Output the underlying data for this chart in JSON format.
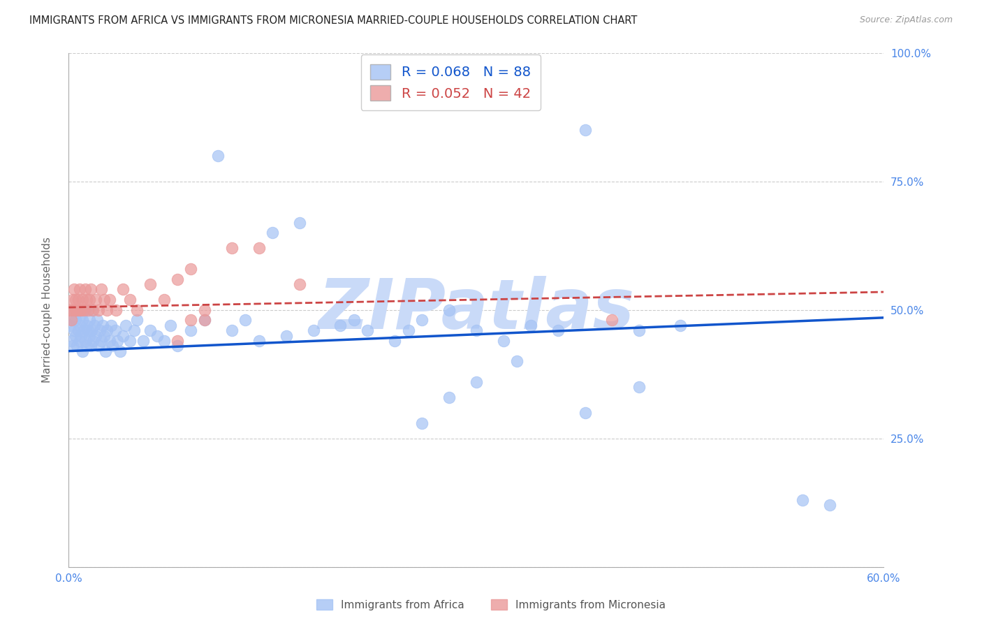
{
  "title": "IMMIGRANTS FROM AFRICA VS IMMIGRANTS FROM MICRONESIA MARRIED-COUPLE HOUSEHOLDS CORRELATION CHART",
  "source": "Source: ZipAtlas.com",
  "ylabel": "Married-couple Households",
  "xlim": [
    0.0,
    0.6
  ],
  "ylim": [
    0.0,
    1.0
  ],
  "xticks": [
    0.0,
    0.1,
    0.2,
    0.3,
    0.4,
    0.5,
    0.6
  ],
  "xticklabels": [
    "0.0%",
    "",
    "",
    "",
    "",
    "",
    "60.0%"
  ],
  "yticks": [
    0.0,
    0.25,
    0.5,
    0.75,
    1.0
  ],
  "yticklabels": [
    "",
    "25.0%",
    "50.0%",
    "75.0%",
    "100.0%"
  ],
  "blue_color": "#a4c2f4",
  "pink_color": "#ea9999",
  "blue_R": 0.068,
  "blue_N": 88,
  "pink_R": 0.052,
  "pink_N": 42,
  "blue_line_color": "#1155cc",
  "pink_line_color": "#cc4444",
  "watermark_color": "#c9daf8",
  "axis_color": "#4a86e8",
  "grid_color": "#cccccc",
  "background_color": "#ffffff",
  "blue_trend_x0": 0.0,
  "blue_trend_y0": 0.42,
  "blue_trend_x1": 0.6,
  "blue_trend_y1": 0.485,
  "pink_trend_x0": 0.0,
  "pink_trend_y0": 0.505,
  "pink_trend_x1": 0.6,
  "pink_trend_y1": 0.535,
  "africa_x": [
    0.001,
    0.002,
    0.003,
    0.003,
    0.004,
    0.004,
    0.005,
    0.005,
    0.006,
    0.007,
    0.007,
    0.008,
    0.008,
    0.009,
    0.009,
    0.01,
    0.01,
    0.011,
    0.012,
    0.012,
    0.013,
    0.013,
    0.014,
    0.015,
    0.015,
    0.016,
    0.017,
    0.017,
    0.018,
    0.019,
    0.02,
    0.021,
    0.022,
    0.023,
    0.024,
    0.025,
    0.026,
    0.027,
    0.028,
    0.03,
    0.031,
    0.032,
    0.034,
    0.036,
    0.038,
    0.04,
    0.042,
    0.045,
    0.048,
    0.05,
    0.055,
    0.06,
    0.065,
    0.07,
    0.075,
    0.08,
    0.09,
    0.1,
    0.11,
    0.12,
    0.13,
    0.14,
    0.15,
    0.16,
    0.17,
    0.18,
    0.2,
    0.21,
    0.22,
    0.24,
    0.25,
    0.26,
    0.28,
    0.3,
    0.32,
    0.34,
    0.36,
    0.38,
    0.42,
    0.45,
    0.26,
    0.28,
    0.3,
    0.33,
    0.38,
    0.42,
    0.54,
    0.56
  ],
  "africa_y": [
    0.47,
    0.44,
    0.48,
    0.43,
    0.46,
    0.5,
    0.45,
    0.48,
    0.43,
    0.46,
    0.5,
    0.44,
    0.47,
    0.45,
    0.49,
    0.42,
    0.48,
    0.46,
    0.44,
    0.5,
    0.47,
    0.43,
    0.46,
    0.45,
    0.48,
    0.43,
    0.46,
    0.5,
    0.44,
    0.47,
    0.45,
    0.48,
    0.43,
    0.46,
    0.44,
    0.47,
    0.45,
    0.42,
    0.46,
    0.44,
    0.47,
    0.43,
    0.46,
    0.44,
    0.42,
    0.45,
    0.47,
    0.44,
    0.46,
    0.48,
    0.44,
    0.46,
    0.45,
    0.44,
    0.47,
    0.43,
    0.46,
    0.48,
    0.8,
    0.46,
    0.48,
    0.44,
    0.65,
    0.45,
    0.67,
    0.46,
    0.47,
    0.48,
    0.46,
    0.44,
    0.46,
    0.48,
    0.5,
    0.46,
    0.44,
    0.47,
    0.46,
    0.85,
    0.46,
    0.47,
    0.28,
    0.33,
    0.36,
    0.4,
    0.3,
    0.35,
    0.13,
    0.12
  ],
  "micro_x": [
    0.001,
    0.002,
    0.003,
    0.003,
    0.004,
    0.005,
    0.005,
    0.006,
    0.007,
    0.008,
    0.008,
    0.009,
    0.01,
    0.011,
    0.012,
    0.013,
    0.014,
    0.015,
    0.016,
    0.018,
    0.02,
    0.022,
    0.024,
    0.026,
    0.028,
    0.03,
    0.035,
    0.04,
    0.045,
    0.05,
    0.06,
    0.07,
    0.08,
    0.09,
    0.1,
    0.12,
    0.14,
    0.08,
    0.09,
    0.1,
    0.4,
    0.17
  ],
  "micro_y": [
    0.5,
    0.48,
    0.52,
    0.5,
    0.54,
    0.5,
    0.52,
    0.5,
    0.52,
    0.5,
    0.54,
    0.5,
    0.52,
    0.5,
    0.54,
    0.52,
    0.5,
    0.52,
    0.54,
    0.5,
    0.52,
    0.5,
    0.54,
    0.52,
    0.5,
    0.52,
    0.5,
    0.54,
    0.52,
    0.5,
    0.55,
    0.52,
    0.44,
    0.48,
    0.5,
    0.62,
    0.62,
    0.56,
    0.58,
    0.48,
    0.48,
    0.55
  ]
}
